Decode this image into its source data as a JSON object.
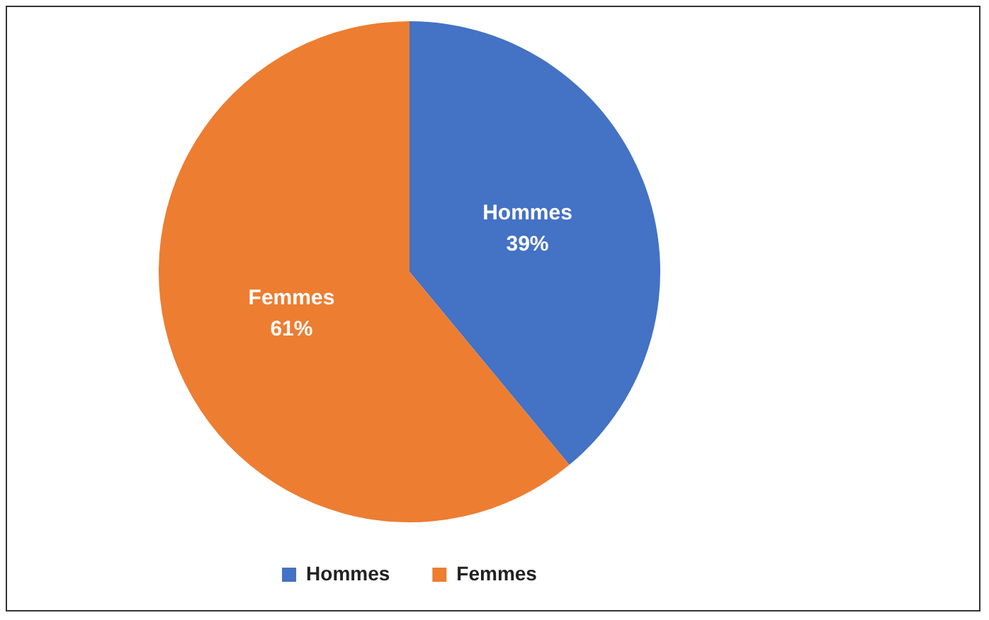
{
  "chart_data": {
    "type": "pie",
    "categories": [
      "Hommes",
      "Femmes"
    ],
    "values": [
      39,
      61
    ],
    "colors": [
      "#4472c4",
      "#ed7d31"
    ],
    "value_labels": [
      "39%",
      "61%"
    ],
    "legend": "bottom"
  }
}
